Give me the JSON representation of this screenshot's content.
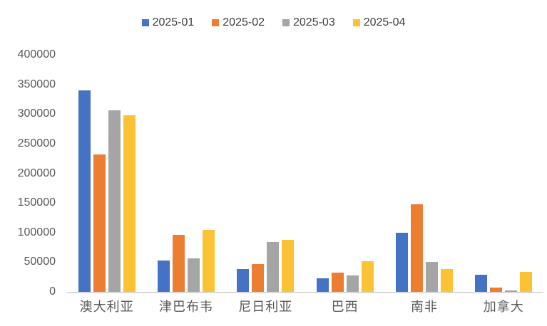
{
  "chart_data": {
    "type": "bar",
    "title": "",
    "categories": [
      "澳大利亚",
      "津巴布韦",
      "尼日利亚",
      "巴西",
      "南非",
      "加拿大"
    ],
    "series": [
      {
        "name": "2025-01",
        "color": "#4472C4",
        "values": [
          340000,
          53000,
          39000,
          23000,
          100000,
          29000
        ]
      },
      {
        "name": "2025-02",
        "color": "#ED7D31",
        "values": [
          232000,
          96000,
          47000,
          33000,
          148000,
          7000
        ]
      },
      {
        "name": "2025-03",
        "color": "#A5A5A5",
        "values": [
          306000,
          57000,
          84000,
          28000,
          50000,
          2000
        ]
      },
      {
        "name": "2025-04",
        "color": "#FBC334",
        "values": [
          298000,
          105000,
          88000,
          52000,
          39000,
          34000
        ]
      }
    ],
    "xlabel": "",
    "ylabel": "",
    "ylim": [
      0,
      400000
    ],
    "y_tick_step": 50000,
    "y_tick_labels": [
      "0",
      "50000",
      "100000",
      "150000",
      "200000",
      "250000",
      "300000",
      "350000",
      "400000"
    ],
    "legend_position": "top",
    "grid": false,
    "baseline_color": "#D9D9D9",
    "axis_text_color": "#595959",
    "legend_text_color": "#404040",
    "background_color": "#FFFFFF"
  }
}
